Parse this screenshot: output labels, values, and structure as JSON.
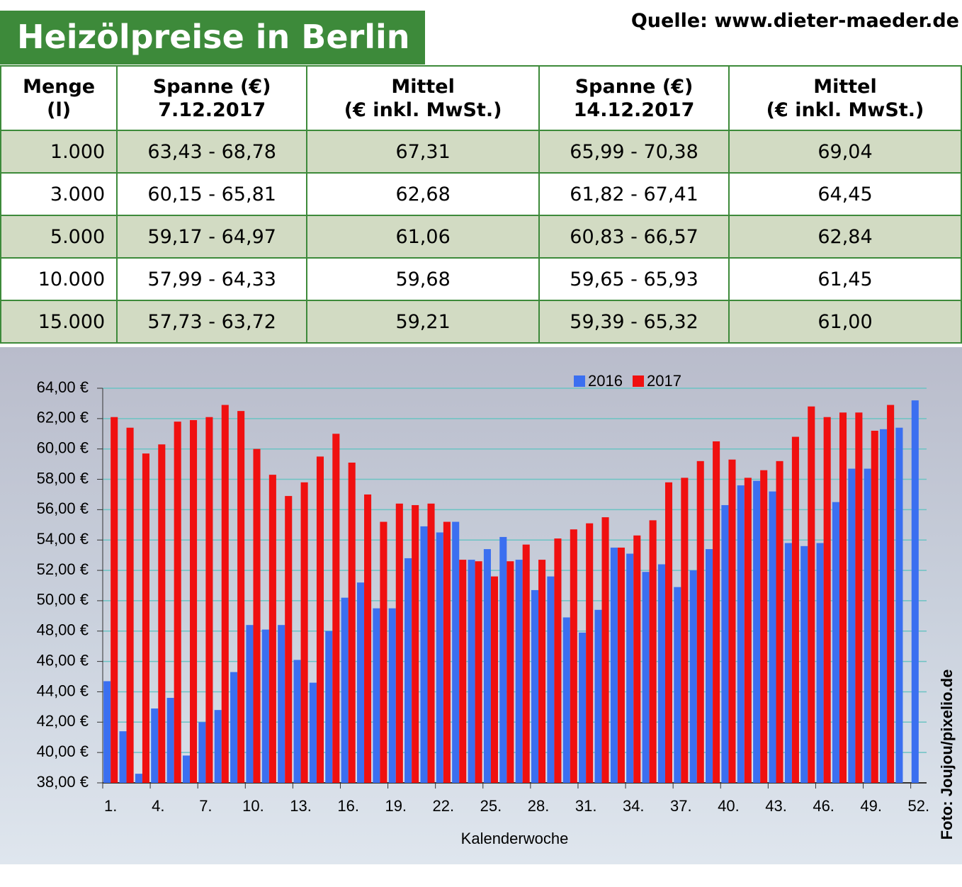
{
  "header": {
    "title": "Heizölpreise in Berlin",
    "source": "Quelle: www.dieter-maeder.de"
  },
  "table": {
    "header": [
      [
        "Menge",
        "(l)"
      ],
      [
        "Spanne (€)",
        "7.12.2017"
      ],
      [
        "Mittel",
        "(€ inkl. MwSt.)"
      ],
      [
        "Spanne (€)",
        "14.12.2017"
      ],
      [
        "Mittel",
        "(€ inkl. MwSt.)"
      ]
    ],
    "rows": [
      [
        "1.000",
        "63,43 - 68,78",
        "67,31",
        "65,99 - 70,38",
        "69,04"
      ],
      [
        "3.000",
        "60,15 - 65,81",
        "62,68",
        "61,82 - 67,41",
        "64,45"
      ],
      [
        "5.000",
        "59,17 - 64,97",
        "61,06",
        "60,83 - 66,57",
        "62,84"
      ],
      [
        "10.000",
        "57,99 - 64,33",
        "59,68",
        "59,65 - 65,93",
        "61,45"
      ],
      [
        "15.000",
        "57,73 - 63,72",
        "59,21",
        "59,39 - 65,32",
        "61,00"
      ]
    ]
  },
  "credit": "Foto: Joujou/pixelio.de",
  "chart_data": {
    "type": "bar",
    "x_label": "Kalenderwoche",
    "categories": [
      "1.",
      null,
      null,
      "4.",
      null,
      null,
      "7.",
      null,
      null,
      "10.",
      null,
      null,
      "13.",
      null,
      null,
      "16.",
      null,
      null,
      "19.",
      null,
      null,
      "22.",
      null,
      null,
      "25.",
      null,
      null,
      "28.",
      null,
      null,
      "31.",
      null,
      null,
      "34.",
      null,
      null,
      "37.",
      null,
      null,
      "40.",
      null,
      null,
      "43.",
      null,
      null,
      "46.",
      null,
      null,
      "49.",
      null,
      null,
      "52."
    ],
    "series": [
      {
        "name": "2016",
        "color": "#3b6ff0",
        "values": [
          44.7,
          41.4,
          38.6,
          42.9,
          43.6,
          39.8,
          42.0,
          42.8,
          45.3,
          48.4,
          48.1,
          48.4,
          46.1,
          44.6,
          48.0,
          50.2,
          51.2,
          49.5,
          49.5,
          52.8,
          54.9,
          54.5,
          55.2,
          52.7,
          53.4,
          54.2,
          52.7,
          50.7,
          51.6,
          48.9,
          47.9,
          49.4,
          53.5,
          53.1,
          51.9,
          52.4,
          50.9,
          52.0,
          53.4,
          56.3,
          57.6,
          57.9,
          57.2,
          53.8,
          53.6,
          53.8,
          56.5,
          58.7,
          58.7,
          61.3,
          61.4,
          63.2
        ]
      },
      {
        "name": "2017",
        "color": "#f01010",
        "values": [
          62.1,
          61.4,
          59.7,
          60.3,
          61.8,
          61.9,
          62.1,
          62.9,
          62.5,
          60.0,
          58.3,
          56.9,
          57.8,
          59.5,
          61.0,
          59.1,
          57.0,
          55.2,
          56.4,
          56.3,
          56.4,
          55.2,
          52.7,
          52.6,
          51.6,
          52.6,
          53.7,
          52.7,
          54.1,
          54.7,
          55.1,
          55.5,
          53.5,
          54.3,
          55.3,
          57.8,
          58.1,
          59.2,
          60.5,
          59.3,
          58.1,
          58.6,
          59.2,
          60.8,
          62.8,
          62.1,
          62.4,
          62.4,
          61.2,
          62.9,
          null,
          null
        ]
      }
    ],
    "ylim": [
      38,
      64
    ],
    "yticks": [
      {
        "value": 38,
        "label": "38,00 €"
      },
      {
        "value": 40,
        "label": "40,00 €"
      },
      {
        "value": 42,
        "label": "42,00 €"
      },
      {
        "value": 44,
        "label": "44,00 €"
      },
      {
        "value": 46,
        "label": "46,00 €"
      },
      {
        "value": 48,
        "label": "48,00 €"
      },
      {
        "value": 50,
        "label": "50,00 €"
      },
      {
        "value": 52,
        "label": "52,00 €"
      },
      {
        "value": 54,
        "label": "54,00 €"
      },
      {
        "value": 56,
        "label": "56,00 €"
      },
      {
        "value": 58,
        "label": "58,00 €"
      },
      {
        "value": 60,
        "label": "60,00 €"
      },
      {
        "value": 62,
        "label": "62,00 €"
      },
      {
        "value": 64,
        "label": "64,00 €"
      }
    ],
    "grid": true,
    "legend": "top"
  }
}
